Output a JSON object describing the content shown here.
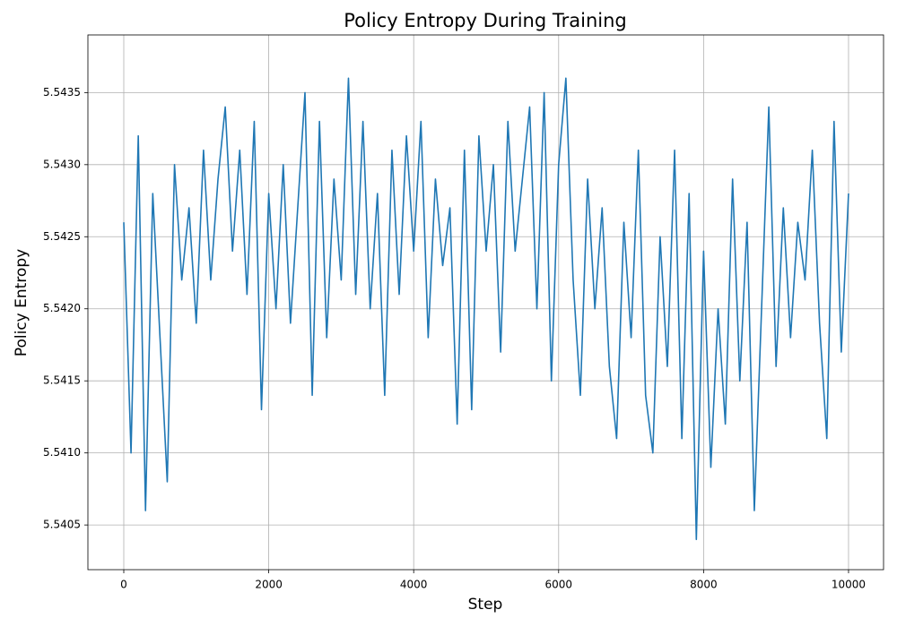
{
  "chart_data": {
    "type": "line",
    "title": "Policy Entropy During Training",
    "x_label": "Step",
    "y_label": "Policy Entropy",
    "grid": true,
    "xlim": [
      -495,
      10483
    ],
    "ylim": [
      5.54019,
      5.5439
    ],
    "xticks": [
      0,
      2000,
      4000,
      6000,
      8000,
      10000
    ],
    "yticks": [
      {
        "value": 5.5405,
        "label": "5.5405"
      },
      {
        "value": 5.541,
        "label": "5.5410"
      },
      {
        "value": 5.5415,
        "label": "5.5415"
      },
      {
        "value": 5.542,
        "label": "5.5420"
      },
      {
        "value": 5.5425,
        "label": "5.5425"
      },
      {
        "value": 5.543,
        "label": "5.5430"
      },
      {
        "value": 5.5435,
        "label": "5.5435"
      }
    ],
    "x": [
      0,
      100,
      200,
      300,
      400,
      500,
      600,
      700,
      800,
      900,
      1000,
      1100,
      1200,
      1300,
      1400,
      1500,
      1600,
      1700,
      1800,
      1900,
      2000,
      2100,
      2200,
      2300,
      2400,
      2500,
      2600,
      2700,
      2800,
      2900,
      3000,
      3100,
      3200,
      3300,
      3400,
      3500,
      3600,
      3700,
      3800,
      3900,
      4000,
      4100,
      4200,
      4300,
      4400,
      4500,
      4600,
      4700,
      4800,
      4900,
      5000,
      5100,
      5200,
      5300,
      5400,
      5500,
      5600,
      5700,
      5800,
      5900,
      6000,
      6100,
      6200,
      6300,
      6400,
      6500,
      6600,
      6700,
      6800,
      6900,
      7000,
      7100,
      7200,
      7300,
      7400,
      7500,
      7600,
      7700,
      7800,
      7900,
      8000,
      8100,
      8200,
      8300,
      8400,
      8500,
      8600,
      8700,
      8800,
      8900,
      9000,
      9100,
      9200,
      9300,
      9400,
      9500,
      9600,
      9700,
      9800,
      9900,
      10000
    ],
    "series": [
      {
        "color": "#1f77b4",
        "values": [
          5.5426,
          5.541,
          5.5432,
          5.5406,
          5.5428,
          5.5418,
          5.5408,
          5.543,
          5.5422,
          5.5427,
          5.5419,
          5.5431,
          5.5422,
          5.5429,
          5.5434,
          5.5424,
          5.5431,
          5.5421,
          5.5433,
          5.5413,
          5.5428,
          5.542,
          5.543,
          5.5419,
          5.5427,
          5.5435,
          5.5414,
          5.5433,
          5.5418,
          5.5429,
          5.5422,
          5.5436,
          5.5421,
          5.5433,
          5.542,
          5.5428,
          5.5414,
          5.5431,
          5.5421,
          5.5432,
          5.5424,
          5.5433,
          5.5418,
          5.5429,
          5.5423,
          5.5427,
          5.5412,
          5.5431,
          5.5413,
          5.5432,
          5.5424,
          5.543,
          5.5417,
          5.5433,
          5.5424,
          5.5429,
          5.5434,
          5.542,
          5.5435,
          5.5415,
          5.543,
          5.5436,
          5.5422,
          5.5414,
          5.5429,
          5.542,
          5.5427,
          5.5416,
          5.5411,
          5.5426,
          5.5418,
          5.5431,
          5.5414,
          5.541,
          5.5425,
          5.5416,
          5.5431,
          5.5411,
          5.5428,
          5.5404,
          5.5424,
          5.5409,
          5.542,
          5.5412,
          5.5429,
          5.5415,
          5.5426,
          5.5406,
          5.542,
          5.5434,
          5.5416,
          5.5427,
          5.5418,
          5.5426,
          5.5422,
          5.5431,
          5.5419,
          5.5411,
          5.5433,
          5.5417,
          5.5428
        ]
      }
    ]
  }
}
